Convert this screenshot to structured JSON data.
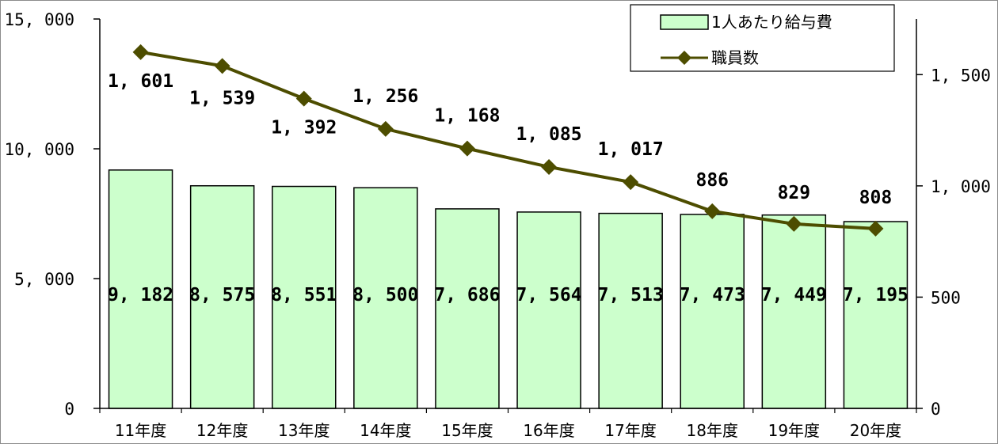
{
  "chart_data": {
    "type": "bar+line",
    "categories": [
      "11年度",
      "12年度",
      "13年度",
      "14年度",
      "15年度",
      "16年度",
      "17年度",
      "18年度",
      "19年度",
      "20年度"
    ],
    "series": [
      {
        "name": "1人あたり給与費",
        "kind": "bar",
        "axis": "left",
        "values": [
          9182,
          8575,
          8551,
          8500,
          7686,
          7564,
          7513,
          7473,
          7449,
          7195
        ],
        "labels": [
          "9, 182",
          "8, 575",
          "8, 551",
          "8, 500",
          "7, 686",
          "7, 564",
          "7, 513",
          "7, 473",
          "7, 449",
          "7, 195"
        ],
        "color": "#ccffcc"
      },
      {
        "name": "職員数",
        "kind": "line",
        "axis": "right",
        "values": [
          1601,
          1539,
          1392,
          1256,
          1168,
          1085,
          1017,
          886,
          829,
          808
        ],
        "labels": [
          "1, 601",
          "1, 539",
          "1, 392",
          "1, 256",
          "1, 168",
          "1, 085",
          "1, 017",
          "886",
          "829",
          "808"
        ],
        "color": "#4d4d00"
      }
    ],
    "y_left": {
      "range": [
        0,
        15000
      ],
      "ticks": [
        0,
        5000,
        10000,
        15000
      ],
      "tick_labels": [
        "0",
        "5, 000",
        "10, 000",
        "15, 000"
      ]
    },
    "y_right": {
      "range": [
        0,
        1750
      ],
      "ticks": [
        0,
        500,
        1000,
        1500
      ],
      "tick_labels": [
        "0",
        "500",
        "1, 000",
        "1, 500"
      ]
    },
    "grid": false,
    "legend_position": "top-right"
  }
}
